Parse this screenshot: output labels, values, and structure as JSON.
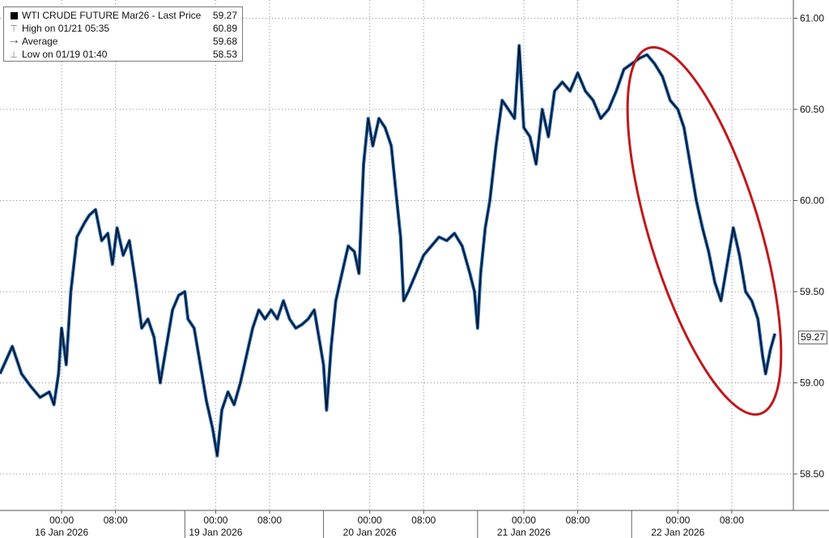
{
  "legend": {
    "title": "WTI CRUDE FUTURE Mar26 - Last Price",
    "last": "59.27",
    "rows": [
      {
        "icon": "high-marker-icon",
        "label": "High on 01/21 05:35",
        "value": "60.89"
      },
      {
        "icon": "average-marker-icon",
        "label": "Average",
        "value": "59.68"
      },
      {
        "icon": "low-marker-icon",
        "label": "Low on 01/19 01:40",
        "value": "58.53"
      }
    ]
  },
  "last_price_badge": "59.27",
  "colors": {
    "price_line": "#000000",
    "price_shadow": "#1f5fa8",
    "annotation": "#c0191d",
    "grid": "#8a8a8a"
  },
  "chart_data": {
    "type": "line",
    "title": "WTI CRUDE FUTURE Mar26 - Last Price",
    "ylim": [
      58.3,
      61.1
    ],
    "y_ticks": [
      "58.50",
      "59.00",
      "59.50",
      "60.00",
      "60.50",
      "61.00"
    ],
    "y_tick_values": [
      58.5,
      59.0,
      59.5,
      60.0,
      60.5,
      61.0
    ],
    "x_ticks": [
      {
        "t": 0.2,
        "label": "00:00"
      },
      {
        "t": 0.55,
        "label": "08:00"
      },
      {
        "t": 1.2,
        "label": "00:00"
      },
      {
        "t": 1.55,
        "label": "08:00"
      },
      {
        "t": 2.2,
        "label": "00:00"
      },
      {
        "t": 2.55,
        "label": "08:00"
      },
      {
        "t": 3.2,
        "label": "00:00"
      },
      {
        "t": 3.55,
        "label": "08:00"
      },
      {
        "t": 4.2,
        "label": "00:00"
      },
      {
        "t": 4.55,
        "label": "08:00"
      }
    ],
    "day_labels": [
      {
        "t": 0.2,
        "label": "16 Jan 2026"
      },
      {
        "t": 1.2,
        "label": "19 Jan 2026"
      },
      {
        "t": 2.2,
        "label": "20 Jan 2026"
      },
      {
        "t": 3.2,
        "label": "21 Jan 2026"
      },
      {
        "t": 4.2,
        "label": "22 Jan 2026"
      }
    ],
    "session_breaks": [
      1.0,
      1.9,
      2.9,
      3.9
    ],
    "xlim": [
      -0.2,
      4.95
    ],
    "series": [
      {
        "points": [
          [
            -0.2,
            59.05
          ],
          [
            -0.12,
            59.2
          ],
          [
            -0.06,
            59.05
          ],
          [
            0.0,
            58.98
          ],
          [
            0.06,
            58.92
          ],
          [
            0.12,
            58.95
          ],
          [
            0.15,
            58.88
          ],
          [
            0.18,
            59.05
          ],
          [
            0.2,
            59.3
          ],
          [
            0.23,
            59.1
          ],
          [
            0.26,
            59.5
          ],
          [
            0.3,
            59.8
          ],
          [
            0.35,
            59.88
          ],
          [
            0.38,
            59.92
          ],
          [
            0.42,
            59.95
          ],
          [
            0.46,
            59.78
          ],
          [
            0.5,
            59.82
          ],
          [
            0.53,
            59.65
          ],
          [
            0.56,
            59.85
          ],
          [
            0.6,
            59.7
          ],
          [
            0.64,
            59.78
          ],
          [
            0.68,
            59.55
          ],
          [
            0.72,
            59.3
          ],
          [
            0.76,
            59.35
          ],
          [
            0.8,
            59.25
          ],
          [
            0.84,
            59.0
          ],
          [
            0.88,
            59.2
          ],
          [
            0.92,
            59.4
          ],
          [
            0.96,
            59.48
          ],
          [
            1.0,
            59.5
          ],
          [
            1.02,
            59.35
          ],
          [
            1.06,
            59.3
          ],
          [
            1.1,
            59.1
          ],
          [
            1.14,
            58.9
          ],
          [
            1.18,
            58.75
          ],
          [
            1.21,
            58.6
          ],
          [
            1.24,
            58.85
          ],
          [
            1.28,
            58.95
          ],
          [
            1.32,
            58.88
          ],
          [
            1.36,
            59.0
          ],
          [
            1.4,
            59.15
          ],
          [
            1.44,
            59.3
          ],
          [
            1.48,
            59.4
          ],
          [
            1.52,
            59.35
          ],
          [
            1.56,
            59.4
          ],
          [
            1.6,
            59.35
          ],
          [
            1.64,
            59.45
          ],
          [
            1.68,
            59.35
          ],
          [
            1.72,
            59.3
          ],
          [
            1.76,
            59.32
          ],
          [
            1.8,
            59.35
          ],
          [
            1.84,
            59.4
          ],
          [
            1.87,
            59.25
          ],
          [
            1.9,
            59.1
          ],
          [
            1.92,
            58.85
          ],
          [
            1.95,
            59.2
          ],
          [
            1.98,
            59.45
          ],
          [
            2.02,
            59.6
          ],
          [
            2.06,
            59.75
          ],
          [
            2.1,
            59.72
          ],
          [
            2.13,
            59.6
          ],
          [
            2.16,
            60.2
          ],
          [
            2.19,
            60.45
          ],
          [
            2.22,
            60.3
          ],
          [
            2.26,
            60.45
          ],
          [
            2.3,
            60.4
          ],
          [
            2.34,
            60.3
          ],
          [
            2.37,
            60.05
          ],
          [
            2.4,
            59.8
          ],
          [
            2.42,
            59.45
          ],
          [
            2.45,
            59.5
          ],
          [
            2.5,
            59.6
          ],
          [
            2.55,
            59.7
          ],
          [
            2.6,
            59.75
          ],
          [
            2.65,
            59.8
          ],
          [
            2.7,
            59.78
          ],
          [
            2.75,
            59.82
          ],
          [
            2.8,
            59.75
          ],
          [
            2.85,
            59.6
          ],
          [
            2.88,
            59.5
          ],
          [
            2.9,
            59.3
          ],
          [
            2.92,
            59.6
          ],
          [
            2.95,
            59.85
          ],
          [
            2.98,
            60.0
          ],
          [
            3.02,
            60.3
          ],
          [
            3.06,
            60.55
          ],
          [
            3.1,
            60.5
          ],
          [
            3.14,
            60.45
          ],
          [
            3.17,
            60.85
          ],
          [
            3.2,
            60.4
          ],
          [
            3.24,
            60.35
          ],
          [
            3.28,
            60.2
          ],
          [
            3.32,
            60.5
          ],
          [
            3.36,
            60.35
          ],
          [
            3.4,
            60.6
          ],
          [
            3.45,
            60.65
          ],
          [
            3.5,
            60.6
          ],
          [
            3.55,
            60.7
          ],
          [
            3.6,
            60.6
          ],
          [
            3.65,
            60.55
          ],
          [
            3.7,
            60.45
          ],
          [
            3.75,
            60.5
          ],
          [
            3.8,
            60.6
          ],
          [
            3.85,
            60.72
          ],
          [
            3.9,
            60.75
          ],
          [
            3.95,
            60.78
          ],
          [
            4.0,
            60.8
          ],
          [
            4.05,
            60.75
          ],
          [
            4.1,
            60.68
          ],
          [
            4.15,
            60.55
          ],
          [
            4.2,
            60.5
          ],
          [
            4.24,
            60.4
          ],
          [
            4.28,
            60.2
          ],
          [
            4.32,
            60.0
          ],
          [
            4.36,
            59.85
          ],
          [
            4.4,
            59.72
          ],
          [
            4.44,
            59.55
          ],
          [
            4.48,
            59.45
          ],
          [
            4.52,
            59.65
          ],
          [
            4.56,
            59.85
          ],
          [
            4.6,
            59.7
          ],
          [
            4.64,
            59.5
          ],
          [
            4.68,
            59.45
          ],
          [
            4.72,
            59.35
          ],
          [
            4.75,
            59.15
          ],
          [
            4.77,
            59.05
          ],
          [
            4.8,
            59.18
          ],
          [
            4.83,
            59.27
          ]
        ]
      }
    ]
  }
}
